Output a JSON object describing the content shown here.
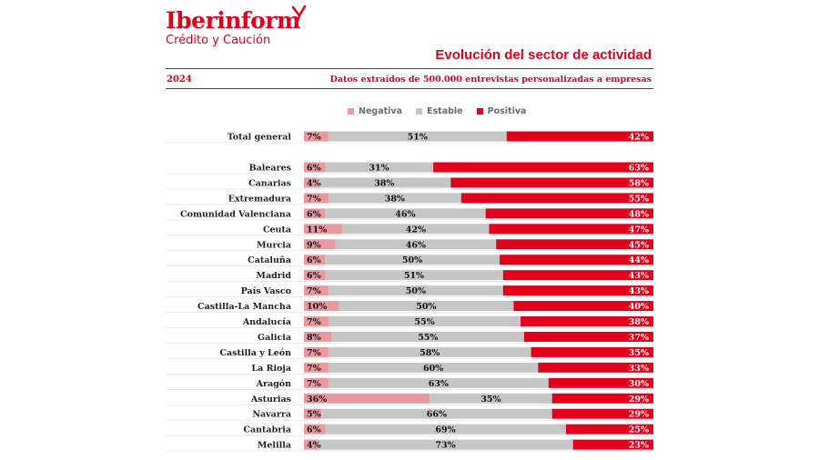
{
  "brand": {
    "name": "Iberinform",
    "tagline": "Crédito y Caución"
  },
  "header": {
    "title": "Evolución del sector de actividad",
    "year": "2024",
    "source": "Datos extraídos de 500.000 entrevistas personalizadas a empresas"
  },
  "colors": {
    "brand": "#e2001a",
    "negativa": "#e8999f",
    "estable": "#c6c6c6",
    "positiva": "#e2001a"
  },
  "legend": {
    "negativa": "Negativa",
    "estable": "Estable",
    "positiva": "Positiva"
  },
  "chart_data": {
    "type": "bar",
    "orientation": "horizontal",
    "stacked": "100%",
    "title": "Evolución del sector de actividad",
    "unit": "%",
    "categories": [
      "Total general",
      "Baleares",
      "Canarias",
      "Extremadura",
      "Comunidad Valenciana",
      "Ceuta",
      "Murcia",
      "Cataluña",
      "Madrid",
      "País Vasco",
      "Castilla-La Mancha",
      "Andalucía",
      "Galicia",
      "Castilla y León",
      "La Rioja",
      "Aragón",
      "Asturias",
      "Navarra",
      "Cantabria",
      "Melilla"
    ],
    "series": [
      {
        "name": "Negativa",
        "values": [
          7,
          6,
          4,
          7,
          6,
          11,
          9,
          6,
          6,
          7,
          10,
          7,
          8,
          7,
          7,
          7,
          36,
          5,
          6,
          4
        ]
      },
      {
        "name": "Estable",
        "values": [
          51,
          31,
          38,
          38,
          46,
          42,
          46,
          50,
          51,
          50,
          50,
          55,
          55,
          58,
          60,
          63,
          35,
          66,
          69,
          73
        ]
      },
      {
        "name": "Positiva",
        "values": [
          42,
          63,
          58,
          55,
          48,
          47,
          45,
          44,
          43,
          43,
          40,
          38,
          37,
          35,
          33,
          30,
          29,
          29,
          25,
          23
        ]
      }
    ],
    "labels": {
      "negativa": [
        "7%",
        "6%",
        "4%",
        "7%",
        "6%",
        "11%",
        "9%",
        "6%",
        "6%",
        "7%",
        "10%",
        "7%",
        "8%",
        "7%",
        "7%",
        "7%",
        "36%",
        "5%",
        "6%",
        "4%"
      ],
      "estable": [
        "51%",
        "31%",
        "38%",
        "38%",
        "46%",
        "42%",
        "46%",
        "50%",
        "51%",
        "50%",
        "50%",
        "55%",
        "55%",
        "58%",
        "60%",
        "63%",
        "35%",
        "66%",
        "69%",
        "73%"
      ],
      "positiva": [
        "42%",
        "63%",
        "58%",
        "55%",
        "48%",
        "47%",
        "45%",
        "44%",
        "43%",
        "43%",
        "40%",
        "38%",
        "37%",
        "35%",
        "33%",
        "30%",
        "29%",
        "29%",
        "25%",
        "23%"
      ]
    },
    "legend_position": "top"
  }
}
